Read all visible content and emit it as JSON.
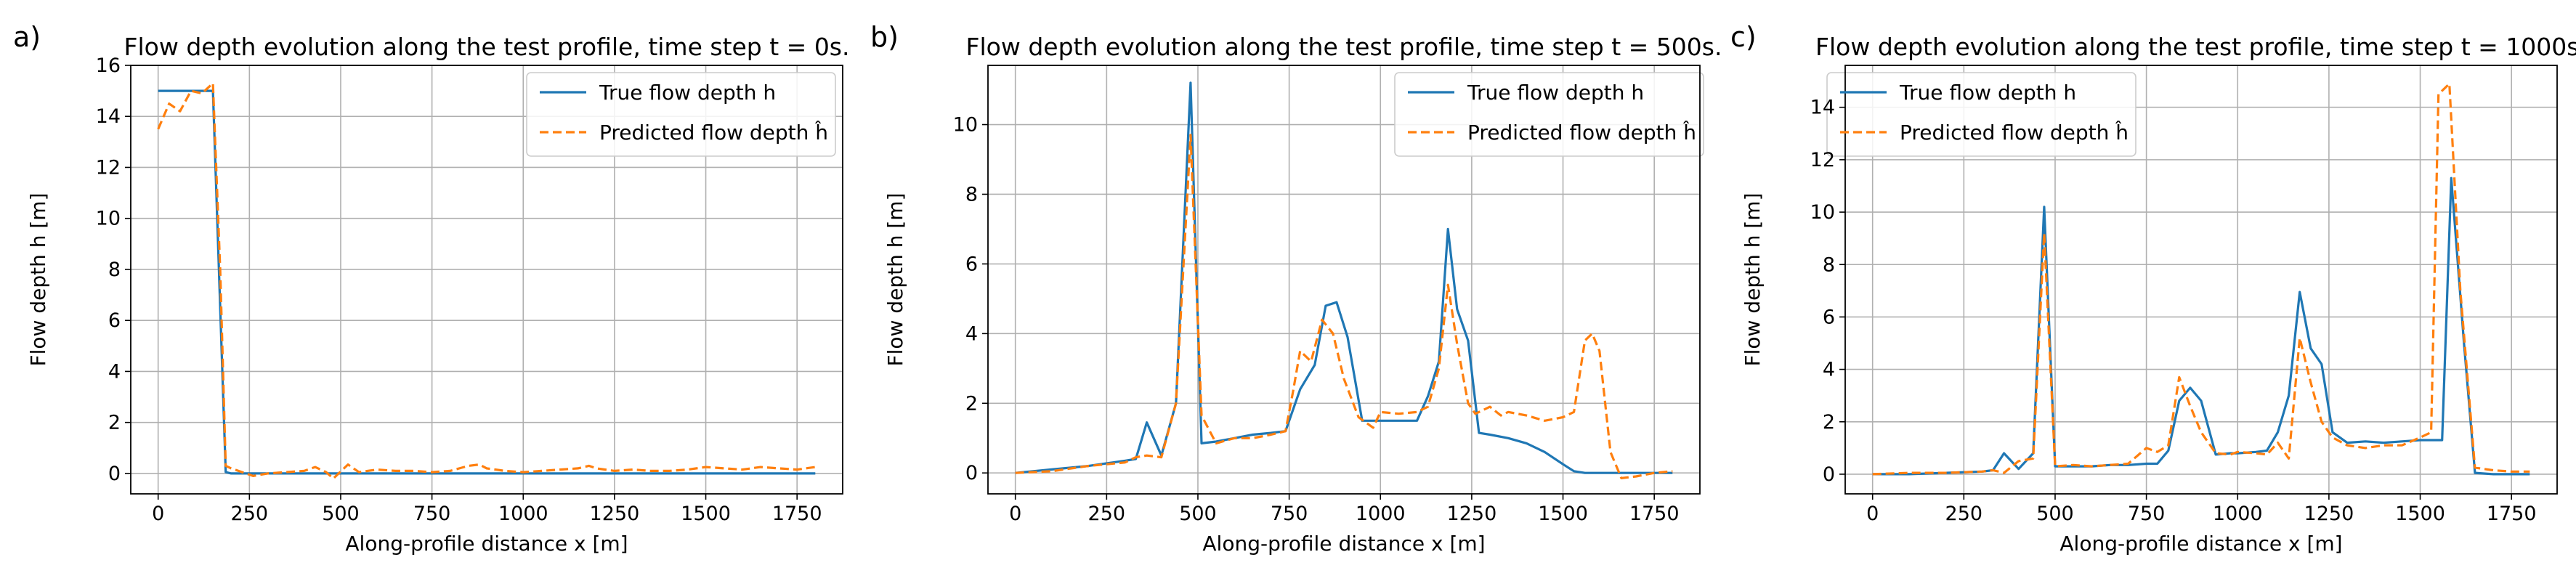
{
  "legend_labels": {
    "true": "True flow depth h",
    "pred": "Predicted flow depth ĥ"
  },
  "colors": {
    "true": "#1f77b4",
    "pred": "#ff7f0e",
    "grid": "#b0b0b0",
    "axes": "#000000"
  },
  "chart_data": [
    {
      "type": "line",
      "panel_label": "a)",
      "title": "Flow depth evolution along the test profile, time step t = 0s.",
      "xlabel": "Along-profile distance x [m]",
      "ylabel": "Flow depth h [m]",
      "xlim": [
        -75,
        1875
      ],
      "ylim": [
        -0.8,
        16
      ],
      "xticks": [
        0,
        250,
        500,
        750,
        1000,
        1250,
        1500,
        1750
      ],
      "yticks": [
        0,
        2,
        4,
        6,
        8,
        10,
        12,
        14,
        16
      ],
      "grid": true,
      "legend_position": "upper right",
      "series": [
        {
          "name": "True flow depth h",
          "style": "solid",
          "x": [
            0,
            120,
            150,
            185,
            200,
            300,
            400,
            500,
            600,
            800,
            1000,
            1200,
            1400,
            1600,
            1800
          ],
          "y": [
            15.0,
            15.0,
            15.0,
            0.05,
            0.0,
            0.0,
            0.0,
            0.0,
            0.0,
            0.0,
            0.0,
            0.0,
            0.0,
            0.0,
            0.0
          ]
        },
        {
          "name": "Predicted flow depth ĥ",
          "style": "dashed",
          "x": [
            0,
            30,
            60,
            90,
            120,
            150,
            170,
            185,
            200,
            230,
            260,
            300,
            350,
            400,
            430,
            460,
            480,
            520,
            550,
            600,
            650,
            700,
            750,
            800,
            850,
            880,
            900,
            950,
            1000,
            1050,
            1100,
            1150,
            1180,
            1200,
            1250,
            1300,
            1350,
            1400,
            1450,
            1500,
            1550,
            1600,
            1650,
            1700,
            1750,
            1800
          ],
          "y": [
            13.5,
            14.5,
            14.2,
            15.0,
            14.9,
            15.3,
            8.0,
            0.3,
            0.2,
            0.05,
            -0.1,
            0.0,
            0.05,
            0.1,
            0.25,
            0.05,
            -0.2,
            0.35,
            0.05,
            0.15,
            0.1,
            0.1,
            0.05,
            0.1,
            0.3,
            0.35,
            0.2,
            0.1,
            0.05,
            0.1,
            0.15,
            0.2,
            0.3,
            0.2,
            0.1,
            0.15,
            0.1,
            0.1,
            0.15,
            0.25,
            0.2,
            0.15,
            0.25,
            0.2,
            0.15,
            0.25
          ]
        }
      ]
    },
    {
      "type": "line",
      "panel_label": "b)",
      "title": "Flow depth evolution along the test profile, time step t = 500s.",
      "xlabel": "Along-profile distance x [m]",
      "ylabel": "Flow depth h [m]",
      "xlim": [
        -75,
        1875
      ],
      "ylim": [
        -0.6,
        11.7
      ],
      "xticks": [
        0,
        250,
        500,
        750,
        1000,
        1250,
        1500,
        1750
      ],
      "yticks": [
        0,
        2,
        4,
        6,
        8,
        10
      ],
      "grid": true,
      "legend_position": "upper right",
      "series": [
        {
          "name": "True flow depth h",
          "style": "solid",
          "x": [
            0,
            100,
            200,
            300,
            330,
            360,
            400,
            440,
            480,
            510,
            550,
            600,
            650,
            700,
            740,
            780,
            820,
            850,
            880,
            910,
            950,
            1000,
            1050,
            1100,
            1130,
            1160,
            1185,
            1210,
            1240,
            1270,
            1300,
            1350,
            1400,
            1450,
            1500,
            1530,
            1560,
            1600,
            1650,
            1700,
            1750,
            1800
          ],
          "y": [
            0.0,
            0.1,
            0.2,
            0.35,
            0.4,
            1.45,
            0.5,
            2.0,
            11.2,
            0.85,
            0.9,
            1.0,
            1.1,
            1.15,
            1.2,
            2.4,
            3.1,
            4.8,
            4.9,
            3.9,
            1.5,
            1.5,
            1.5,
            1.5,
            2.2,
            3.2,
            7.0,
            4.7,
            3.8,
            1.15,
            1.1,
            1.0,
            0.85,
            0.6,
            0.25,
            0.05,
            0.0,
            0.0,
            0.0,
            0.0,
            0.0,
            0.0
          ]
        },
        {
          "name": "Predicted flow depth ĥ",
          "style": "dashed",
          "x": [
            0,
            100,
            200,
            300,
            330,
            360,
            400,
            440,
            480,
            510,
            550,
            600,
            650,
            700,
            740,
            760,
            780,
            810,
            840,
            870,
            900,
            940,
            980,
            1000,
            1050,
            1100,
            1130,
            1160,
            1185,
            1210,
            1240,
            1260,
            1300,
            1330,
            1350,
            1400,
            1450,
            1500,
            1530,
            1560,
            1580,
            1600,
            1630,
            1660,
            1700,
            1750,
            1800
          ],
          "y": [
            0.0,
            0.05,
            0.2,
            0.3,
            0.45,
            0.5,
            0.45,
            2.0,
            9.7,
            1.65,
            0.85,
            1.0,
            1.0,
            1.1,
            1.2,
            2.3,
            3.5,
            3.2,
            4.4,
            4.0,
            2.7,
            1.6,
            1.3,
            1.75,
            1.7,
            1.75,
            1.9,
            3.0,
            5.4,
            3.7,
            2.0,
            1.7,
            1.9,
            1.65,
            1.75,
            1.65,
            1.5,
            1.6,
            1.75,
            3.8,
            4.0,
            3.5,
            0.6,
            -0.15,
            -0.1,
            0.0,
            0.05
          ]
        }
      ]
    },
    {
      "type": "line",
      "panel_label": "c)",
      "title": "Flow depth evolution along the test profile, time step t = 1000s.",
      "xlabel": "Along-profile distance x [m]",
      "ylabel": "Flow depth h [m]",
      "xlim": [
        -75,
        1875
      ],
      "ylim": [
        -0.75,
        15.6
      ],
      "xticks": [
        0,
        250,
        500,
        750,
        1000,
        1250,
        1500,
        1750
      ],
      "yticks": [
        0,
        2,
        4,
        6,
        8,
        10,
        12,
        14
      ],
      "grid": true,
      "legend_position": "upper left",
      "series": [
        {
          "name": "True flow depth h",
          "style": "solid",
          "x": [
            0,
            100,
            200,
            300,
            330,
            360,
            400,
            440,
            470,
            500,
            550,
            600,
            650,
            700,
            750,
            780,
            810,
            840,
            870,
            900,
            940,
            980,
            1000,
            1050,
            1080,
            1110,
            1140,
            1170,
            1200,
            1230,
            1260,
            1300,
            1350,
            1400,
            1450,
            1500,
            1540,
            1560,
            1585,
            1620,
            1650,
            1700,
            1750,
            1800
          ],
          "y": [
            0.0,
            0.0,
            0.05,
            0.1,
            0.15,
            0.8,
            0.2,
            0.8,
            10.2,
            0.3,
            0.3,
            0.3,
            0.35,
            0.35,
            0.4,
            0.4,
            0.9,
            2.8,
            3.3,
            2.8,
            0.75,
            0.8,
            0.8,
            0.85,
            0.9,
            1.6,
            3.0,
            6.95,
            4.8,
            4.2,
            1.6,
            1.2,
            1.25,
            1.2,
            1.25,
            1.3,
            1.3,
            1.3,
            11.3,
            5.0,
            0.05,
            0.0,
            0.0,
            0.0
          ]
        },
        {
          "name": "Predicted flow depth ĥ",
          "style": "dashed",
          "x": [
            0,
            100,
            200,
            300,
            330,
            360,
            400,
            440,
            470,
            500,
            550,
            600,
            650,
            700,
            750,
            780,
            810,
            840,
            870,
            900,
            940,
            980,
            1000,
            1050,
            1080,
            1110,
            1140,
            1170,
            1200,
            1230,
            1260,
            1300,
            1350,
            1400,
            1450,
            1500,
            1530,
            1550,
            1580,
            1610,
            1650,
            1700,
            1750,
            1800
          ],
          "y": [
            0.0,
            0.05,
            0.05,
            0.1,
            0.15,
            0.05,
            0.5,
            0.6,
            9.2,
            0.3,
            0.35,
            0.3,
            0.35,
            0.4,
            1.0,
            0.85,
            1.1,
            3.7,
            2.6,
            1.6,
            0.8,
            0.75,
            0.85,
            0.8,
            0.75,
            1.2,
            0.6,
            5.2,
            3.5,
            2.0,
            1.4,
            1.1,
            1.0,
            1.1,
            1.1,
            1.4,
            1.6,
            14.5,
            14.9,
            7.0,
            0.25,
            0.15,
            0.1,
            0.1
          ]
        }
      ]
    }
  ]
}
